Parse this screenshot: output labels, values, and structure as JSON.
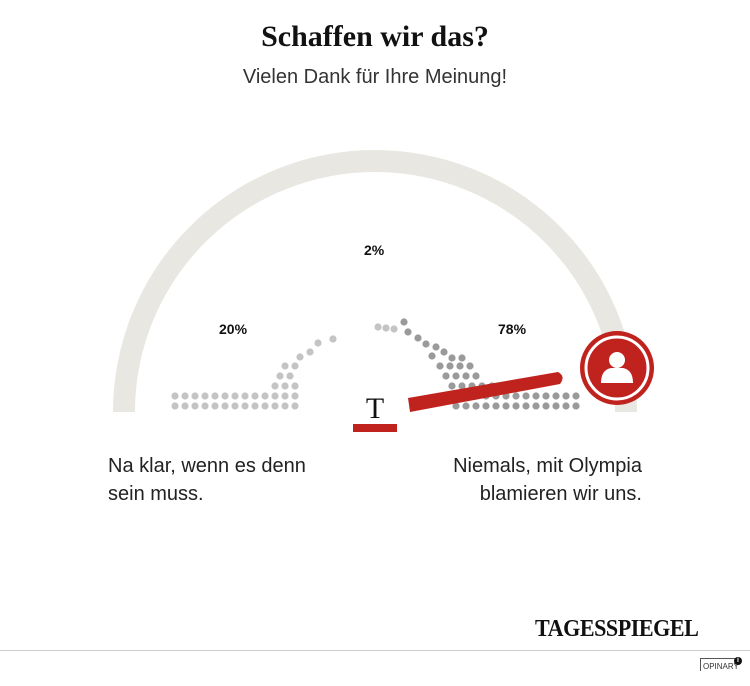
{
  "header": {
    "title": "Schaffen wir das?",
    "subtitle": "Vielen Dank für Ihre Meinung!"
  },
  "results": [
    {
      "label": "20%",
      "value": 20
    },
    {
      "label": "2%",
      "value": 2
    },
    {
      "label": "78%",
      "value": 78
    }
  ],
  "answers": {
    "left_line1": "Na klar, wenn es denn",
    "left_line2": "sein muss.",
    "right_line1": "Niemals, mit Olympia",
    "right_line2": "blamieren wir uns."
  },
  "needle": {
    "position_percent": 92,
    "icon": "user-icon",
    "color": "#c0231d"
  },
  "brand": {
    "logo": "TAGESSPIEGEL",
    "logo_mark": "T",
    "footer": "OPINARY",
    "info_icon": "info-icon"
  },
  "colors": {
    "arc": "#e8e7e2",
    "dots_left": "#c4c4c4",
    "dots_right": "#9a9a9a",
    "accent": "#c0231d"
  }
}
